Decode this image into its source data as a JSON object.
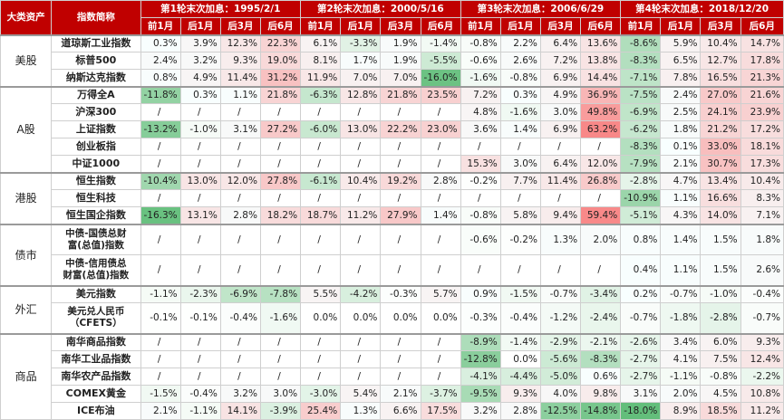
{
  "header": {
    "asset_label": "大类资产",
    "index_label": "指数简称",
    "rounds": [
      "第1轮末次加息：1995/2/1",
      "第2轮末次加息：2000/5/16",
      "第3轮末次加息：2006/6/29",
      "第4轮末次加息：2018/12/20"
    ],
    "periods": [
      "前1月",
      "后1月",
      "后3月",
      "后6月"
    ]
  },
  "colors": {
    "header_bg": "#c00000",
    "positive_max": "#f08a8a",
    "negative_max": "#63be7b"
  },
  "groups": [
    {
      "asset": "美股",
      "rows": [
        {
          "index": [
            "道琼斯工业指数"
          ],
          "values": [
            "0.3%",
            "3.9%",
            "12.3%",
            "22.3%",
            "6.1%",
            "-3.3%",
            "1.9%",
            "-1.4%",
            "-0.8%",
            "2.2%",
            "6.4%",
            "13.6%",
            "-8.6%",
            "5.9%",
            "10.4%",
            "14.7%"
          ]
        },
        {
          "index": [
            "标普500"
          ],
          "values": [
            "2.4%",
            "3.2%",
            "9.3%",
            "19.0%",
            "8.1%",
            "1.7%",
            "1.9%",
            "-5.5%",
            "-0.6%",
            "2.6%",
            "7.2%",
            "13.8%",
            "-8.3%",
            "6.5%",
            "12.7%",
            "17.8%"
          ]
        },
        {
          "index": [
            "纳斯达克指数"
          ],
          "values": [
            "0.8%",
            "4.9%",
            "11.4%",
            "31.2%",
            "11.9%",
            "7.0%",
            "7.0%",
            "-16.0%",
            "-1.6%",
            "-0.8%",
            "6.9%",
            "14.4%",
            "-7.1%",
            "7.8%",
            "16.5%",
            "21.3%"
          ]
        }
      ]
    },
    {
      "asset": "A股",
      "rows": [
        {
          "index": [
            "万得全A"
          ],
          "values": [
            "-11.8%",
            "0.3%",
            "1.1%",
            "21.8%",
            "-6.3%",
            "12.8%",
            "21.8%",
            "23.5%",
            "7.2%",
            "0.3%",
            "4.9%",
            "36.9%",
            "-7.5%",
            "2.4%",
            "27.0%",
            "21.6%"
          ]
        },
        {
          "index": [
            "沪深300"
          ],
          "values": [
            "/",
            "/",
            "/",
            "/",
            "/",
            "/",
            "/",
            "/",
            "4.8%",
            "-1.6%",
            "3.0%",
            "49.8%",
            "-6.9%",
            "2.5%",
            "24.1%",
            "23.9%"
          ]
        },
        {
          "index": [
            "上证指数"
          ],
          "values": [
            "-13.2%",
            "-1.0%",
            "3.1%",
            "27.2%",
            "-6.0%",
            "13.0%",
            "22.2%",
            "23.0%",
            "3.6%",
            "1.4%",
            "6.9%",
            "63.2%",
            "-6.2%",
            "1.8%",
            "21.2%",
            "17.2%"
          ]
        },
        {
          "index": [
            "创业板指"
          ],
          "values": [
            "/",
            "/",
            "/",
            "/",
            "/",
            "/",
            "/",
            "/",
            "/",
            "/",
            "/",
            "/",
            "-8.3%",
            "0.1%",
            "33.0%",
            "18.1%"
          ]
        },
        {
          "index": [
            "中证1000"
          ],
          "values": [
            "/",
            "/",
            "/",
            "/",
            "/",
            "/",
            "/",
            "/",
            "15.3%",
            "3.0%",
            "6.4%",
            "12.0%",
            "-7.9%",
            "2.1%",
            "30.7%",
            "17.3%"
          ]
        }
      ]
    },
    {
      "asset": "港股",
      "rows": [
        {
          "index": [
            "恒生指数"
          ],
          "values": [
            "-10.4%",
            "13.0%",
            "12.0%",
            "27.8%",
            "-6.1%",
            "10.4%",
            "19.2%",
            "2.8%",
            "-0.2%",
            "7.7%",
            "11.4%",
            "26.8%",
            "-2.8%",
            "4.7%",
            "13.4%",
            "10.4%"
          ]
        },
        {
          "index": [
            "恒生科技"
          ],
          "values": [
            "/",
            "/",
            "/",
            "/",
            "/",
            "/",
            "/",
            "/",
            "/",
            "/",
            "/",
            "/",
            "-10.9%",
            "1.1%",
            "16.6%",
            "8.3%"
          ]
        },
        {
          "index": [
            "恒生国企指数"
          ],
          "values": [
            "-16.3%",
            "13.1%",
            "2.8%",
            "18.2%",
            "18.7%",
            "11.2%",
            "27.9%",
            "1.4%",
            "-0.8%",
            "5.8%",
            "9.4%",
            "59.4%",
            "-5.1%",
            "4.3%",
            "14.0%",
            "7.1%"
          ]
        }
      ]
    },
    {
      "asset": "债市",
      "rows": [
        {
          "index": [
            "中债-国债总财",
            "富(总值)指数"
          ],
          "values": [
            "/",
            "/",
            "/",
            "/",
            "/",
            "/",
            "/",
            "/",
            "-0.6%",
            "-0.2%",
            "1.3%",
            "2.0%",
            "0.8%",
            "1.4%",
            "1.5%",
            "1.8%"
          ]
        },
        {
          "index": [
            "中债-信用债总",
            "财富(总值)指数"
          ],
          "values": [
            "/",
            "/",
            "/",
            "/",
            "/",
            "/",
            "/",
            "/",
            "/",
            "/",
            "/",
            "/",
            "0.4%",
            "1.1%",
            "1.5%",
            "2.6%"
          ]
        }
      ]
    },
    {
      "asset": "外汇",
      "rows": [
        {
          "index": [
            "美元指数"
          ],
          "values": [
            "-1.1%",
            "-2.3%",
            "-6.9%",
            "-7.8%",
            "5.5%",
            "-4.2%",
            "-0.3%",
            "5.7%",
            "0.9%",
            "-1.5%",
            "-0.7%",
            "-3.4%",
            "0.2%",
            "-0.7%",
            "-1.0%",
            "-0.4%"
          ]
        },
        {
          "index": [
            "美元兑人民币",
            "（CFETS）"
          ],
          "values": [
            "-0.1%",
            "-0.1%",
            "-0.4%",
            "-1.6%",
            "0.0%",
            "0.0%",
            "0.0%",
            "0.0%",
            "-0.3%",
            "-0.4%",
            "-1.2%",
            "-2.4%",
            "-0.7%",
            "-1.8%",
            "-2.8%",
            "-0.7%"
          ]
        }
      ]
    },
    {
      "asset": "商品",
      "rows": [
        {
          "index": [
            "南华商品指数"
          ],
          "values": [
            "/",
            "/",
            "/",
            "/",
            "/",
            "/",
            "/",
            "/",
            "-8.9%",
            "-1.4%",
            "-2.9%",
            "-2.1%",
            "-2.6%",
            "3.4%",
            "6.0%",
            "9.3%"
          ]
        },
        {
          "index": [
            "南华工业品指数"
          ],
          "values": [
            "/",
            "/",
            "/",
            "/",
            "/",
            "/",
            "/",
            "/",
            "-12.8%",
            "0.0%",
            "-5.6%",
            "-8.3%",
            "-2.7%",
            "4.1%",
            "7.5%",
            "12.4%"
          ]
        },
        {
          "index": [
            "南华农产品指数"
          ],
          "values": [
            "/",
            "/",
            "/",
            "/",
            "/",
            "/",
            "/",
            "/",
            "-4.1%",
            "-4.4%",
            "-5.0%",
            "0.6%",
            "-2.7%",
            "-1.1%",
            "-0.8%",
            "-2.2%"
          ]
        },
        {
          "index": [
            "COMEX黄金"
          ],
          "values": [
            "-1.5%",
            "-0.4%",
            "3.2%",
            "3.0%",
            "-3.0%",
            "5.4%",
            "2.1%",
            "-3.7%",
            "-9.5%",
            "9.3%",
            "4.0%",
            "9.8%",
            "3.1%",
            "2.0%",
            "4.5%",
            "10.8%"
          ]
        },
        {
          "index": [
            "ICE布油"
          ],
          "values": [
            "2.1%",
            "-1.1%",
            "14.1%",
            "-3.9%",
            "25.4%",
            "1.3%",
            "6.6%",
            "17.5%",
            "3.2%",
            "2.8%",
            "-12.5%",
            "-14.8%",
            "-18.0%",
            "8.9%",
            "18.5%",
            "11.2%"
          ]
        }
      ]
    }
  ]
}
